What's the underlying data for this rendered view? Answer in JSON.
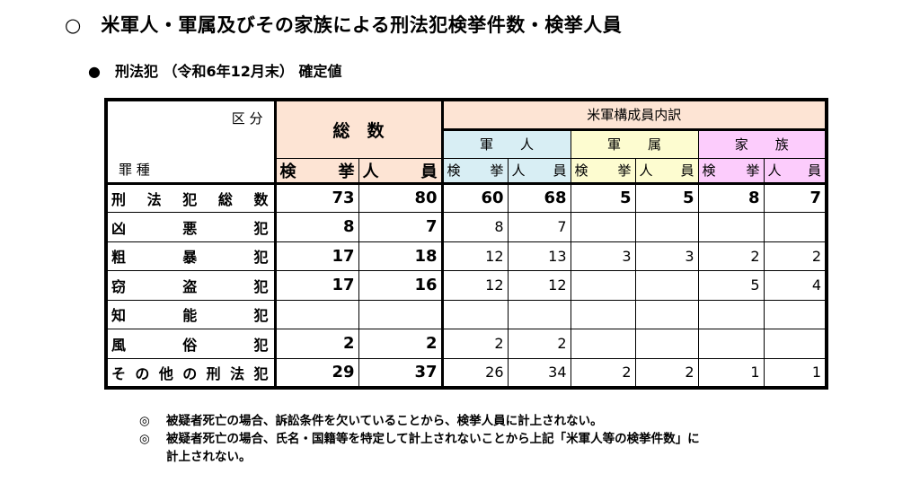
{
  "title": "○　米軍人・軍属及びその家族による刑法犯検挙件数・検挙人員",
  "subtitle": "●　刑法犯 （令和6年12月末） 確定値",
  "table": {
    "corner_top": "区 分",
    "corner_bottom": "罪 種",
    "total_header": "総　数",
    "breakdown_header": "米軍構成員内訳",
    "groups": [
      "軍　　人",
      "軍　　属",
      "家　　族"
    ],
    "sub_headers": [
      "検　挙",
      "人　員"
    ],
    "rows": [
      {
        "label": "刑法犯総数",
        "values": [
          "73",
          "80",
          "60",
          "68",
          "5",
          "5",
          "8",
          "7"
        ]
      },
      {
        "label": "凶悪犯",
        "values": [
          "8",
          "7",
          "8",
          "7",
          "",
          "",
          "",
          ""
        ]
      },
      {
        "label": "粗暴犯",
        "values": [
          "17",
          "18",
          "12",
          "13",
          "3",
          "3",
          "2",
          "2"
        ]
      },
      {
        "label": "窃盗犯",
        "values": [
          "17",
          "16",
          "12",
          "12",
          "",
          "",
          "5",
          "4"
        ]
      },
      {
        "label": "知能犯",
        "values": [
          "",
          "",
          "",
          "",
          "",
          "",
          "",
          ""
        ]
      },
      {
        "label": "風俗犯",
        "values": [
          "2",
          "2",
          "2",
          "2",
          "",
          "",
          "",
          ""
        ]
      },
      {
        "label": "その他の刑法犯",
        "values": [
          "29",
          "37",
          "26",
          "34",
          "2",
          "2",
          "1",
          "1"
        ]
      }
    ]
  },
  "notes": [
    {
      "mark": "◎",
      "text": "被疑者死亡の場合、訴訟条件を欠いていることから、検挙人員に計上されない。"
    },
    {
      "mark": "◎",
      "text": "被疑者死亡の場合、氏名・国籍等を特定して計上されないことから上記「米軍人等の検挙件数」に計上されない。"
    }
  ],
  "colors": {
    "total": "#fde4d4",
    "military": "#d8eef4",
    "civilian": "#fdfcd0",
    "family": "#fcccfc"
  }
}
